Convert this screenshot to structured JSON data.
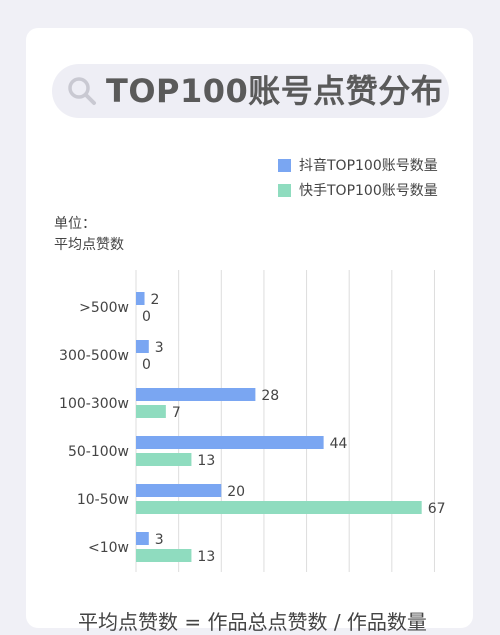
{
  "header": {
    "title": "TOP100账号点赞分布",
    "icon": "search-icon"
  },
  "legend": {
    "douyin": "抖音TOP100账号数量",
    "kuaishou": "快手TOP100账号数量"
  },
  "unit": {
    "line1": "单位：",
    "line2": "平均点赞数"
  },
  "footer": {
    "text": "平均点赞数 = 作品总点赞数 / 作品数量"
  },
  "colors": {
    "douyin": "#7aa6f2",
    "kuaishou": "#8fdcbf",
    "grid": "#dddddd"
  },
  "chart_data": {
    "type": "bar",
    "orientation": "horizontal",
    "categories": [
      ">500w",
      "300-500w",
      "100-300w",
      "50-100w",
      "10-50w",
      "<10w"
    ],
    "series": [
      {
        "name": "抖音TOP100账号数量",
        "values": [
          2,
          3,
          28,
          44,
          20,
          3
        ]
      },
      {
        "name": "快手TOP100账号数量",
        "values": [
          0,
          0,
          7,
          13,
          67,
          13
        ]
      }
    ],
    "xlim": [
      0,
      70
    ],
    "grid": true,
    "legend_position": "top-right",
    "data_labels": true
  }
}
